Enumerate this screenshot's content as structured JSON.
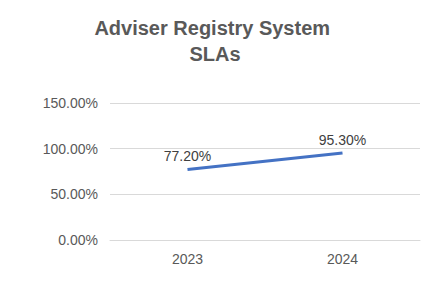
{
  "chart_data": {
    "type": "line",
    "title": "Adviser Registry System SLAs",
    "categories": [
      "2023",
      "2024"
    ],
    "values": [
      77.2,
      95.3
    ],
    "value_labels": [
      "77.20%",
      "95.30%"
    ],
    "color": "#4472c4",
    "ylim": [
      0,
      150
    ],
    "yticks": [
      {
        "value": 0,
        "label": "0.00%"
      },
      {
        "value": 50,
        "label": "50.00%"
      },
      {
        "value": 100,
        "label": "100.00%"
      },
      {
        "value": 150,
        "label": "150.00%"
      }
    ],
    "grid": true,
    "data_labels": true
  }
}
